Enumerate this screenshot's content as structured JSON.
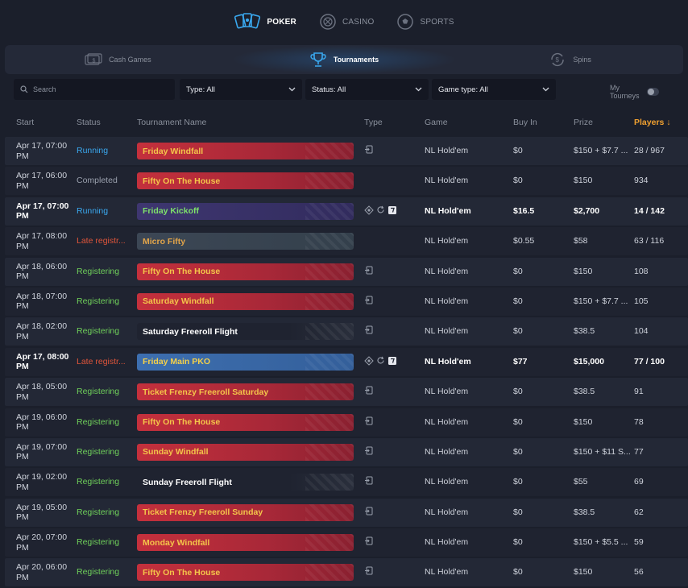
{
  "topnav": {
    "items": [
      {
        "label": "POKER",
        "icon": "cards-icon",
        "active": true
      },
      {
        "label": "CASINO",
        "icon": "casino-chip-icon",
        "active": false
      },
      {
        "label": "SPORTS",
        "icon": "soccer-ball-icon",
        "active": false
      }
    ]
  },
  "subtabs": {
    "items": [
      {
        "label": "Cash Games",
        "icon": "cash-icon",
        "active": false
      },
      {
        "label": "Tournaments",
        "icon": "trophy-icon",
        "active": true
      },
      {
        "label": "Spins",
        "icon": "spins-icon",
        "active": false
      }
    ]
  },
  "filters": {
    "search_placeholder": "Search",
    "type": "Type: All",
    "status": "Status: All",
    "game_type": "Game type: All",
    "my_tourneys": "My Tourneys"
  },
  "table": {
    "headers": {
      "start": "Start",
      "status": "Status",
      "name": "Tournament Name",
      "type": "Type",
      "game": "Game",
      "buyin": "Buy In",
      "prize": "Prize",
      "players": "Players ↓"
    },
    "rows": [
      {
        "start": "Apr 17, 07:00 PM",
        "status": "Running",
        "status_kind": "running",
        "name": "Friday Windfall",
        "banner": "red",
        "icons": [
          "enter"
        ],
        "game": "NL Hold'em",
        "buyin": "$0",
        "prize": "$150 + $7.7 ...",
        "players": "28 / 967",
        "bold": false
      },
      {
        "start": "Apr 17, 06:00 PM",
        "status": "Completed",
        "status_kind": "completed",
        "name": "Fifty On The House",
        "banner": "red",
        "icons": [],
        "game": "NL Hold'em",
        "buyin": "$0",
        "prize": "$150",
        "players": "934",
        "bold": false
      },
      {
        "start": "Apr 17, 07:00 PM",
        "status": "Running",
        "status_kind": "running",
        "name": "Friday Kickoff",
        "banner": "purple",
        "icons": [
          "bounty",
          "rebuy",
          "ticket"
        ],
        "game": "NL Hold'em",
        "buyin": "$16.5",
        "prize": "$2,700",
        "players": "14 / 142",
        "bold": true
      },
      {
        "start": "Apr 17, 08:00 PM",
        "status": "Late registr...",
        "status_kind": "late",
        "name": "Micro Fifty",
        "banner": "slate",
        "icons": [],
        "game": "NL Hold'em",
        "buyin": "$0.55",
        "prize": "$58",
        "players": "63 / 116",
        "bold": false
      },
      {
        "start": "Apr 18, 06:00 PM",
        "status": "Registering",
        "status_kind": "registering",
        "name": "Fifty On The House",
        "banner": "red",
        "icons": [
          "enter"
        ],
        "game": "NL Hold'em",
        "buyin": "$0",
        "prize": "$150",
        "players": "108",
        "bold": false
      },
      {
        "start": "Apr 18, 07:00 PM",
        "status": "Registering",
        "status_kind": "registering",
        "name": "Saturday Windfall",
        "banner": "red",
        "icons": [
          "enter"
        ],
        "game": "NL Hold'em",
        "buyin": "$0",
        "prize": "$150 + $7.7 ...",
        "players": "105",
        "bold": false
      },
      {
        "start": "Apr 18, 02:00 PM",
        "status": "Registering",
        "status_kind": "registering",
        "name": "Saturday Freeroll Flight",
        "banner": "dark",
        "icons": [
          "enter"
        ],
        "game": "NL Hold'em",
        "buyin": "$0",
        "prize": "$38.5",
        "players": "104",
        "bold": false
      },
      {
        "start": "Apr 17, 08:00 PM",
        "status": "Late registr...",
        "status_kind": "late",
        "name": "Friday Main PKO",
        "banner": "blue",
        "icons": [
          "bounty",
          "rebuy",
          "ticket"
        ],
        "game": "NL Hold'em",
        "buyin": "$77",
        "prize": "$15,000",
        "players": "77 / 100",
        "bold": true
      },
      {
        "start": "Apr 18, 05:00 PM",
        "status": "Registering",
        "status_kind": "registering",
        "name": "Ticket Frenzy Freeroll Saturday",
        "banner": "red",
        "icons": [
          "enter"
        ],
        "game": "NL Hold'em",
        "buyin": "$0",
        "prize": "$38.5",
        "players": "91",
        "bold": false
      },
      {
        "start": "Apr 19, 06:00 PM",
        "status": "Registering",
        "status_kind": "registering",
        "name": "Fifty On The House",
        "banner": "red",
        "icons": [
          "enter"
        ],
        "game": "NL Hold'em",
        "buyin": "$0",
        "prize": "$150",
        "players": "78",
        "bold": false
      },
      {
        "start": "Apr 19, 07:00 PM",
        "status": "Registering",
        "status_kind": "registering",
        "name": "Sunday Windfall",
        "banner": "red",
        "icons": [
          "enter"
        ],
        "game": "NL Hold'em",
        "buyin": "$0",
        "prize": "$150 + $11 S...",
        "players": "77",
        "bold": false
      },
      {
        "start": "Apr 19, 02:00 PM",
        "status": "Registering",
        "status_kind": "registering",
        "name": "Sunday Freeroll Flight",
        "banner": "dark",
        "icons": [
          "enter"
        ],
        "game": "NL Hold'em",
        "buyin": "$0",
        "prize": "$55",
        "players": "69",
        "bold": false
      },
      {
        "start": "Apr 19, 05:00 PM",
        "status": "Registering",
        "status_kind": "registering",
        "name": "Ticket Frenzy Freeroll Sunday",
        "banner": "red",
        "icons": [
          "enter"
        ],
        "game": "NL Hold'em",
        "buyin": "$0",
        "prize": "$38.5",
        "players": "62",
        "bold": false
      },
      {
        "start": "Apr 20, 07:00 PM",
        "status": "Registering",
        "status_kind": "registering",
        "name": "Monday Windfall",
        "banner": "red",
        "icons": [
          "enter"
        ],
        "game": "NL Hold'em",
        "buyin": "$0",
        "prize": "$150 + $5.5 ...",
        "players": "59",
        "bold": false
      },
      {
        "start": "Apr 20, 06:00 PM",
        "status": "Registering",
        "status_kind": "registering",
        "name": "Fifty On The House",
        "banner": "red",
        "icons": [
          "enter"
        ],
        "game": "NL Hold'em",
        "buyin": "$0",
        "prize": "$150",
        "players": "56",
        "bold": false
      }
    ]
  }
}
